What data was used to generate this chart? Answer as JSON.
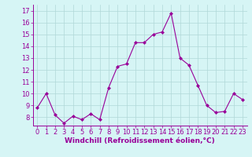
{
  "x": [
    0,
    1,
    2,
    3,
    4,
    5,
    6,
    7,
    8,
    9,
    10,
    11,
    12,
    13,
    14,
    15,
    16,
    17,
    18,
    19,
    20,
    21,
    22,
    23
  ],
  "y": [
    8.8,
    10.0,
    8.2,
    7.5,
    8.1,
    7.8,
    8.3,
    7.8,
    10.5,
    12.3,
    12.5,
    14.3,
    14.3,
    15.0,
    15.2,
    16.8,
    13.0,
    12.4,
    10.7,
    9.0,
    8.4,
    8.5,
    10.0,
    9.5
  ],
  "line_color": "#990099",
  "marker": "D",
  "marker_size": 2,
  "bg_color": "#d6f5f5",
  "grid_color": "#b0d8d8",
  "xlabel": "Windchill (Refroidissement éolien,°C)",
  "xlabel_fontsize": 6.5,
  "tick_fontsize": 6,
  "ylim": [
    7.3,
    17.5
  ],
  "yticks": [
    8,
    9,
    10,
    11,
    12,
    13,
    14,
    15,
    16,
    17
  ],
  "xticks": [
    0,
    1,
    2,
    3,
    4,
    5,
    6,
    7,
    8,
    9,
    10,
    11,
    12,
    13,
    14,
    15,
    16,
    17,
    18,
    19,
    20,
    21,
    22,
    23
  ]
}
